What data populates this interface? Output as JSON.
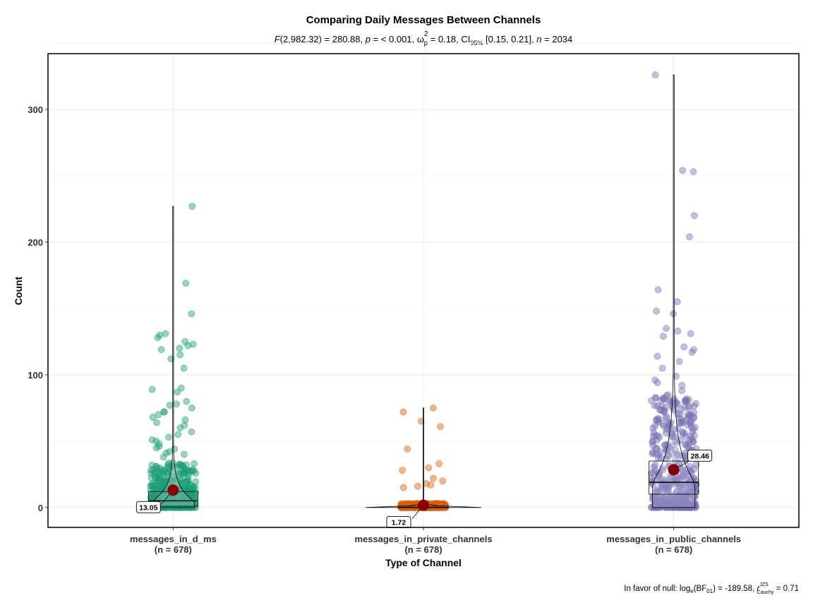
{
  "chart_data": {
    "type": "violin-box-scatter",
    "title": "Comparing Daily Messages Between Channels",
    "subtitle": {
      "stat_label": "F",
      "stat_df": "(2,982.32)",
      "stat_value": " = 280.88, ",
      "p_label": "p",
      "p_value": " = < 0.001, ω",
      "omega_sup": "2",
      "omega_sub": "p",
      "effect_value": " = 0.18, CI",
      "ci_sub": "95%",
      "ci_value": " [0.15, 0.21], ",
      "n_label": "n",
      "n_value": " = 2034"
    },
    "xlabel": "Type of Channel",
    "ylabel": "Count",
    "ylim": [
      -15,
      342
    ],
    "yticks": [
      0,
      100,
      200,
      300
    ],
    "grid": true,
    "categories": [
      {
        "name": "messages_in_d_ms",
        "n_label": "(n = 678)",
        "color": "#1b9e77",
        "mean": 13.05,
        "mean_label": "13.05",
        "box": {
          "q1": 1,
          "median": 5,
          "q3": 12
        },
        "max": 227,
        "outliers": [
          227,
          169,
          146,
          131,
          130,
          128,
          125,
          123,
          122,
          120,
          119,
          115,
          112,
          105,
          90,
          89,
          87,
          80,
          78,
          77,
          75,
          72,
          72,
          70,
          68,
          66,
          64,
          62,
          60,
          57,
          55,
          53,
          51,
          50,
          48,
          46,
          45,
          44,
          42,
          41,
          40,
          38
        ]
      },
      {
        "name": "messages_in_private_channels",
        "n_label": "(n = 678)",
        "color": "#d95f02",
        "mean": 1.72,
        "mean_label": "1.72",
        "box": {
          "q1": 0,
          "median": 0,
          "q3": 1
        },
        "max": 75,
        "outliers": [
          75,
          72,
          65,
          61,
          44,
          33,
          30,
          28,
          22,
          20,
          18,
          17,
          16,
          15
        ]
      },
      {
        "name": "messages_in_public_channels",
        "n_label": "(n = 678)",
        "color": "#7570b3",
        "mean": 28.46,
        "mean_label": "28.46",
        "box": {
          "q1": 10,
          "median": 19,
          "q3": 35
        },
        "max": 326,
        "outliers": [
          326,
          254,
          253,
          220,
          204,
          164,
          155,
          148,
          146,
          135,
          133,
          131,
          129,
          121,
          119,
          117,
          114,
          110,
          105,
          99,
          96,
          94,
          92,
          88,
          85,
          82,
          80,
          78,
          76,
          74,
          73,
          72,
          70,
          68,
          66,
          64,
          62,
          60
        ]
      }
    ],
    "caption": {
      "prefix": "In favor of null: log",
      "log_sub": "e",
      "bf_open": "(BF",
      "bf_sub": "01",
      "bf_close": ") = -189.58, ",
      "r_label": "r",
      "r_sup": "JZS",
      "r_sub": "Cauchy",
      "r_value": " = 0.71"
    }
  }
}
